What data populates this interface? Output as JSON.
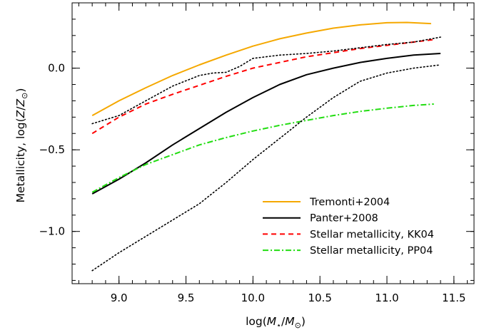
{
  "chart_data": {
    "type": "line",
    "xlabel": "log(M⋆/M⊙)",
    "ylabel": "Metallicity,  log(Z/Z⊙)",
    "xlim": [
      8.65,
      11.65
    ],
    "ylim": [
      -1.32,
      0.4
    ],
    "xticks": [
      {
        "value": 9.0,
        "label": "9.0"
      },
      {
        "value": 9.5,
        "label": "9.5"
      },
      {
        "value": 10.0,
        "label": "10.0"
      },
      {
        "value": 10.5,
        "label": "10.5"
      },
      {
        "value": 11.0,
        "label": "11.0"
      },
      {
        "value": 11.5,
        "label": "11.5"
      }
    ],
    "xminor_step": 0.1,
    "yticks": [
      {
        "value": 0.0,
        "label": "0.0"
      },
      {
        "value": -0.5,
        "label": "−0.5"
      },
      {
        "value": -1.0,
        "label": "−1.0"
      }
    ],
    "yminor_step": 0.1,
    "grid": false,
    "legend_position": "bottom-right",
    "series": [
      {
        "name": "Tremonti+2004",
        "color": "#f5a800",
        "dash": "solid",
        "in_legend": true,
        "x": [
          8.8,
          9.0,
          9.2,
          9.4,
          9.6,
          9.8,
          10.0,
          10.2,
          10.4,
          10.6,
          10.8,
          11.0,
          11.15,
          11.33
        ],
        "y": [
          -0.29,
          -0.2,
          -0.12,
          -0.045,
          0.02,
          0.08,
          0.135,
          0.18,
          0.215,
          0.245,
          0.265,
          0.278,
          0.28,
          0.273
        ]
      },
      {
        "name": "Panter+2008",
        "color": "#000000",
        "dash": "solid",
        "in_legend": true,
        "x": [
          8.8,
          9.0,
          9.2,
          9.4,
          9.6,
          9.8,
          10.0,
          10.2,
          10.4,
          10.6,
          10.8,
          11.0,
          11.2,
          11.4
        ],
        "y": [
          -0.77,
          -0.68,
          -0.58,
          -0.47,
          -0.37,
          -0.27,
          -0.18,
          -0.1,
          -0.04,
          0.0,
          0.035,
          0.06,
          0.08,
          0.09
        ]
      },
      {
        "name": "Stellar metallicity, KK04",
        "color": "#ff0000",
        "dash": "dashed",
        "in_legend": true,
        "x": [
          8.8,
          9.0,
          9.2,
          9.4,
          9.6,
          9.8,
          10.0,
          10.2,
          10.4,
          10.6,
          10.8,
          11.0,
          11.2,
          11.35
        ],
        "y": [
          -0.4,
          -0.3,
          -0.22,
          -0.16,
          -0.105,
          -0.05,
          0.0,
          0.035,
          0.07,
          0.095,
          0.12,
          0.14,
          0.16,
          0.175
        ]
      },
      {
        "name": "Stellar metallicity, PP04",
        "color": "#22dd11",
        "dash": "dashdot",
        "in_legend": true,
        "x": [
          8.8,
          9.0,
          9.2,
          9.4,
          9.6,
          9.8,
          10.0,
          10.2,
          10.4,
          10.6,
          10.8,
          11.0,
          11.2,
          11.35
        ],
        "y": [
          -0.76,
          -0.67,
          -0.59,
          -0.53,
          -0.47,
          -0.425,
          -0.385,
          -0.35,
          -0.32,
          -0.29,
          -0.265,
          -0.245,
          -0.228,
          -0.22
        ]
      },
      {
        "name": "",
        "color": "#000000",
        "dash": "dotted",
        "in_legend": false,
        "x": [
          8.8,
          9.0,
          9.2,
          9.4,
          9.6,
          9.7,
          9.8,
          9.9,
          10.0,
          10.2,
          10.4,
          10.6,
          10.8,
          11.0,
          11.2,
          11.4
        ],
        "y": [
          -0.34,
          -0.29,
          -0.2,
          -0.11,
          -0.045,
          -0.03,
          -0.025,
          0.01,
          0.06,
          0.08,
          0.09,
          0.105,
          0.125,
          0.145,
          0.16,
          0.19
        ]
      },
      {
        "name": "",
        "color": "#000000",
        "dash": "dotted",
        "in_legend": false,
        "x": [
          8.8,
          9.0,
          9.2,
          9.4,
          9.6,
          9.8,
          10.0,
          10.2,
          10.4,
          10.6,
          10.8,
          11.0,
          11.2,
          11.4
        ],
        "y": [
          -1.24,
          -1.13,
          -1.03,
          -0.93,
          -0.83,
          -0.7,
          -0.56,
          -0.43,
          -0.3,
          -0.18,
          -0.08,
          -0.03,
          0.0,
          0.02
        ]
      }
    ]
  }
}
